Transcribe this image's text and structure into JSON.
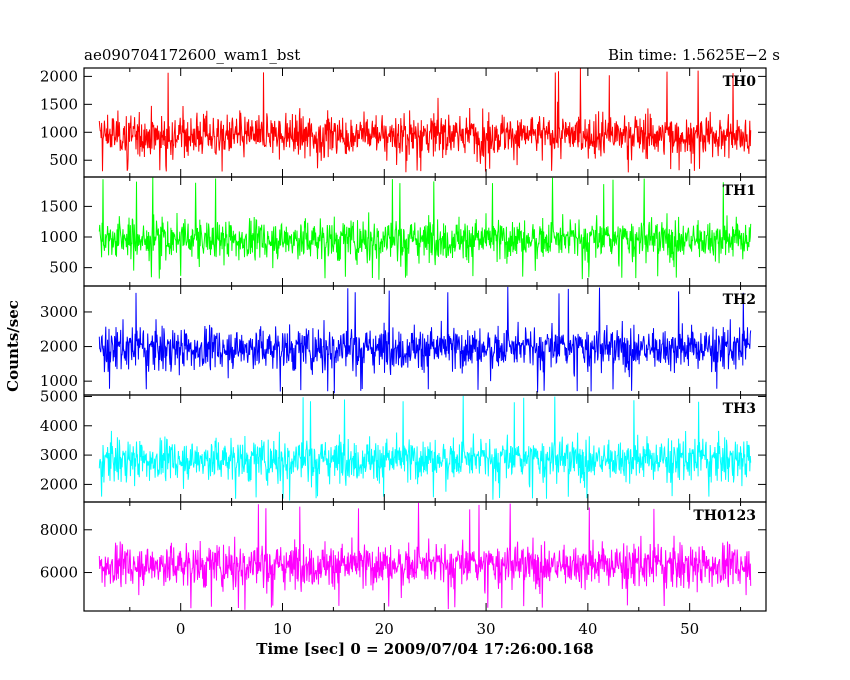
{
  "header": {
    "left_title": "ae090704172600_wam1_bst",
    "right_title": "Bin time: 1.5625E−2 s"
  },
  "axes": {
    "ylabel": "Counts/sec",
    "xlabel": "Time [sec] 0 = 2009/07/04 17:26:00.168"
  },
  "chart_data": {
    "type": "line",
    "title": "ae090704172600_wam1_bst",
    "subtitle": "Bin time: 1.5625E−2 s",
    "xlabel": "Time [sec] 0 = 2009/07/04 17:26:00.168",
    "ylabel": "Counts/sec",
    "xlim": [
      -9.5,
      57.5
    ],
    "data_x_range": [
      -8,
      56
    ],
    "x_ticks": [
      0,
      10,
      20,
      30,
      40,
      50
    ],
    "bin_time_s": 0.015625,
    "grid": false,
    "series": [
      {
        "name": "TH0",
        "color": "#ff0000",
        "ylim": [
          200,
          2150
        ],
        "y_ticks": [
          500,
          1000,
          1500,
          2000
        ],
        "mean": 950,
        "min": 280,
        "max": 2150
      },
      {
        "name": "TH1",
        "color": "#00ff00",
        "ylim": [
          200,
          1980
        ],
        "y_ticks": [
          500,
          1000,
          1500
        ],
        "mean": 960,
        "min": 300,
        "max": 1980
      },
      {
        "name": "TH2",
        "color": "#0000ff",
        "ylim": [
          600,
          3750
        ],
        "y_ticks": [
          1000,
          2000,
          3000
        ],
        "mean": 1950,
        "min": 650,
        "max": 3750
      },
      {
        "name": "TH3",
        "color": "#00ffff",
        "ylim": [
          1400,
          5050
        ],
        "y_ticks": [
          2000,
          3000,
          4000,
          5000
        ],
        "mean": 2850,
        "min": 1450,
        "max": 5050
      },
      {
        "name": "TH0123",
        "color": "#ff00ff",
        "ylim": [
          4200,
          9300
        ],
        "y_ticks": [
          6000,
          8000
        ],
        "mean": 6350,
        "min": 4250,
        "max": 9300
      }
    ]
  }
}
